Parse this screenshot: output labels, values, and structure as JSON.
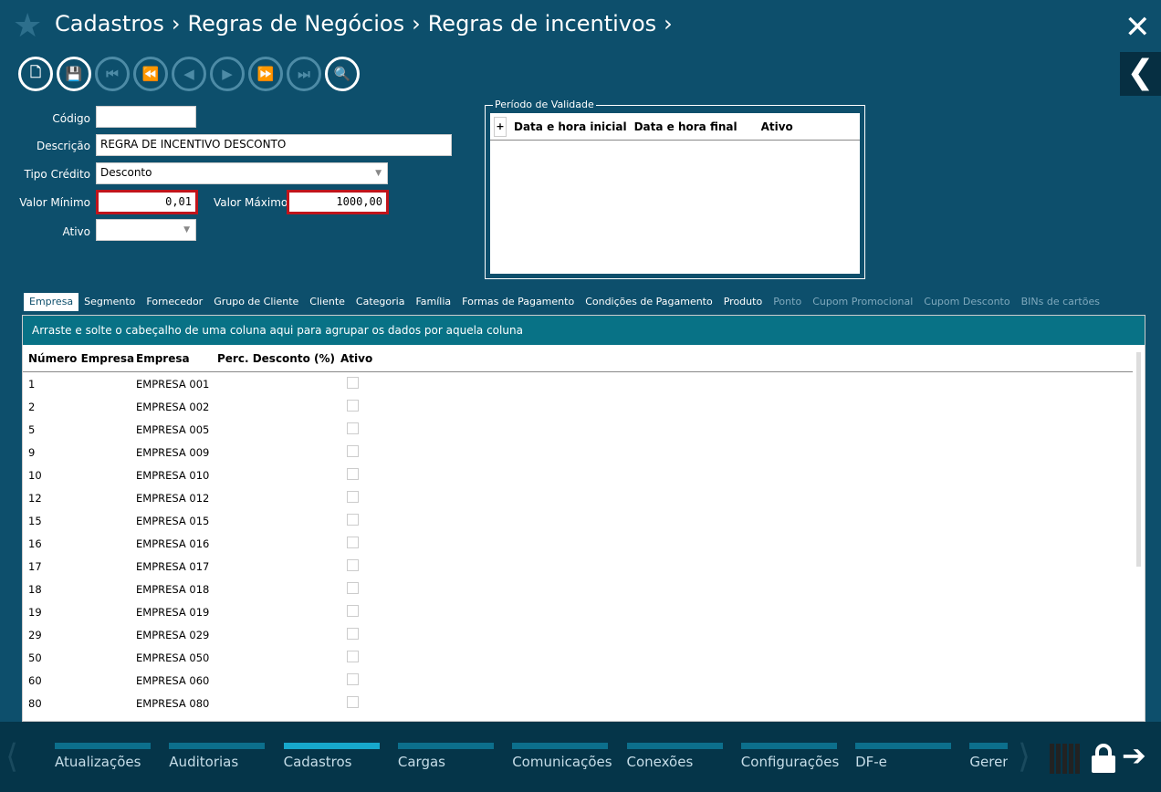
{
  "breadcrumb": [
    "Cadastros",
    "Regras de Negócios",
    "Regras de incentivos"
  ],
  "form": {
    "codigo_label": "Código",
    "codigo_value": "",
    "descricao_label": "Descrição",
    "descricao_value": "REGRA DE INCENTIVO DESCONTO",
    "tipo_label": "Tipo Crédito",
    "tipo_value": "Desconto",
    "vmin_label": "Valor Mínimo",
    "vmin_value": "0,01",
    "vmax_label": "Valor Máximo",
    "vmax_value": "1000,00",
    "ativo_label": "Ativo",
    "ativo_value": ""
  },
  "periodo": {
    "legend": "Período de Validade",
    "add": "+",
    "columns": [
      "Data e hora inicial",
      "Data e hora final",
      "Ativo"
    ]
  },
  "tabs": [
    {
      "label": "Empresa",
      "state": "active"
    },
    {
      "label": "Segmento"
    },
    {
      "label": "Fornecedor"
    },
    {
      "label": "Grupo de Cliente"
    },
    {
      "label": "Cliente"
    },
    {
      "label": "Categoria"
    },
    {
      "label": "Família"
    },
    {
      "label": "Formas de Pagamento"
    },
    {
      "label": "Condições de Pagamento"
    },
    {
      "label": "Produto"
    },
    {
      "label": "Ponto",
      "state": "disabled"
    },
    {
      "label": "Cupom Promocional",
      "state": "disabled"
    },
    {
      "label": "Cupom Desconto",
      "state": "disabled"
    },
    {
      "label": "BINs de cartões",
      "state": "disabled"
    }
  ],
  "grid": {
    "group_hint": "Arraste e solte o cabeçalho de uma coluna aqui para agrupar os dados por aquela coluna",
    "columns": [
      "Número Empresa",
      "Empresa",
      "Perc. Desconto (%)",
      "Ativo"
    ],
    "rows": [
      [
        "1",
        "EMPRESA 001"
      ],
      [
        "2",
        "EMPRESA 002"
      ],
      [
        "5",
        "EMPRESA 005"
      ],
      [
        "9",
        "EMPRESA 009"
      ],
      [
        "10",
        "EMPRESA 010"
      ],
      [
        "12",
        "EMPRESA 012"
      ],
      [
        "15",
        "EMPRESA 015"
      ],
      [
        "16",
        "EMPRESA 016"
      ],
      [
        "17",
        "EMPRESA 017"
      ],
      [
        "18",
        "EMPRESA 018"
      ],
      [
        "19",
        "EMPRESA 019"
      ],
      [
        "29",
        "EMPRESA 029"
      ],
      [
        "50",
        "EMPRESA 050"
      ],
      [
        "60",
        "EMPRESA 060"
      ],
      [
        "80",
        "EMPRESA 080"
      ]
    ]
  },
  "bottom_nav": [
    {
      "label": "Atualizações"
    },
    {
      "label": "Auditorias"
    },
    {
      "label": "Cadastros",
      "active": true
    },
    {
      "label": "Cargas"
    },
    {
      "label": "Comunicações"
    },
    {
      "label": "Conexões"
    },
    {
      "label": "Configurações"
    },
    {
      "label": "DF-e"
    },
    {
      "label": "Geren"
    }
  ]
}
